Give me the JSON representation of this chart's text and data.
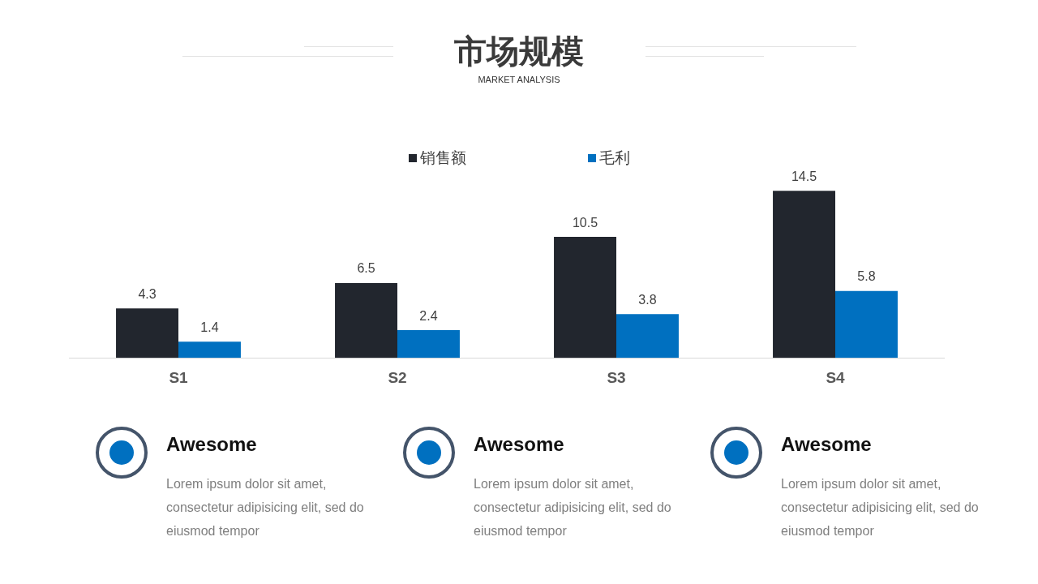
{
  "chart_data": {
    "type": "bar",
    "title": "市场规模",
    "subtitle": "MARKET ANALYSIS",
    "categories": [
      "S1",
      "S2",
      "S3",
      "S4"
    ],
    "series": [
      {
        "name": "销售额",
        "color": "#22262e",
        "values": [
          4.3,
          6.5,
          10.5,
          14.5
        ]
      },
      {
        "name": "毛利",
        "color": "#0070c0",
        "values": [
          1.4,
          2.4,
          3.8,
          5.8
        ]
      }
    ],
    "data_labels": true,
    "legend": "top",
    "grid": false,
    "tick_labels": "x",
    "annotations": [
      "Awesome",
      "Lorem ipsum dolor sit amet, consectetur adipisicing elit, sed do eiusmod tempor",
      "Awesome",
      "Lorem ipsum dolor sit amet, consectetur adipisicing elit, sed do eiusmod tempor",
      "Awesome",
      "Lorem ipsum dolor sit amet, consectetur adipisicing elit, sed do eiusmod tempor"
    ]
  }
}
